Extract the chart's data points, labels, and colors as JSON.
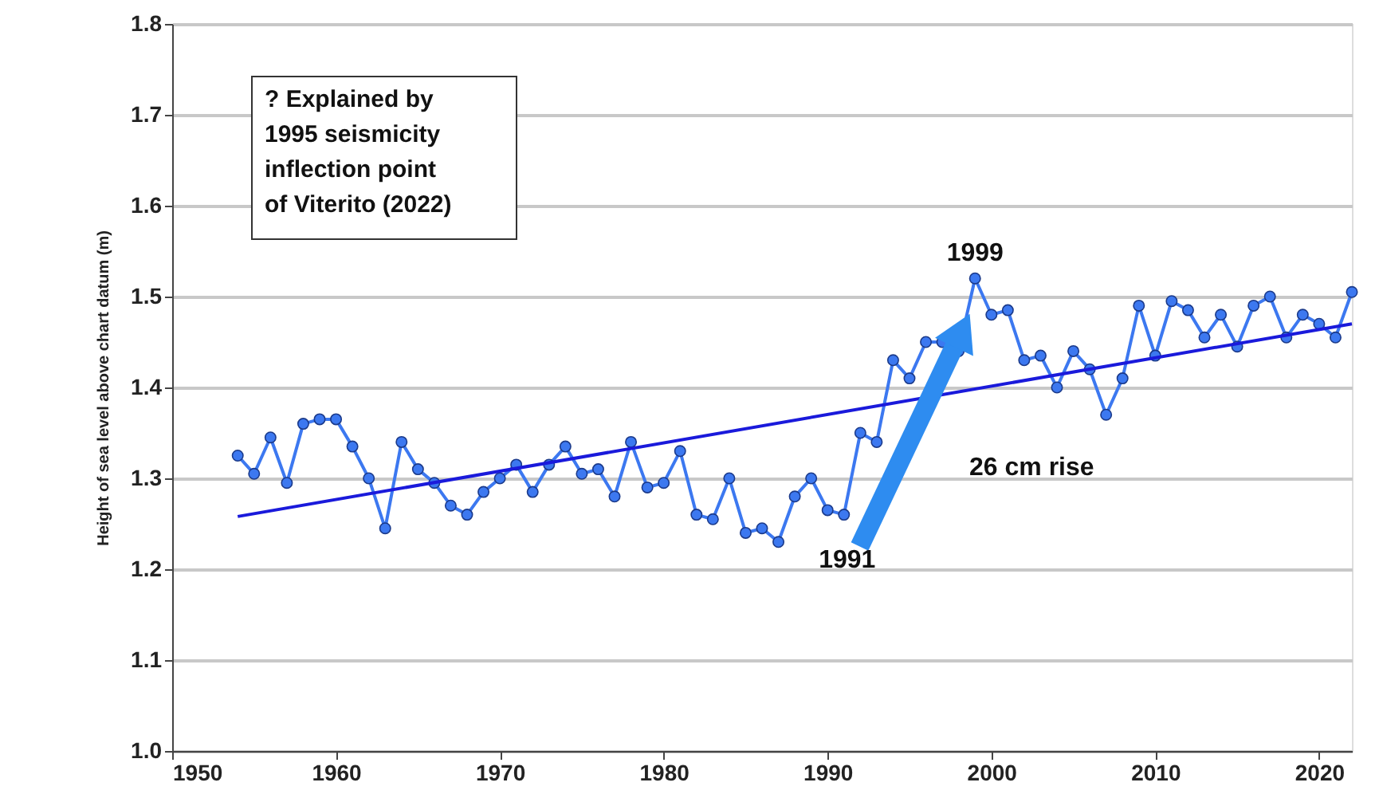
{
  "chart_data": {
    "type": "line",
    "ylabel": "Height of sea level above chart datum (m)",
    "x": [
      1954,
      1955,
      1956,
      1957,
      1958,
      1959,
      1960,
      1961,
      1962,
      1963,
      1964,
      1965,
      1966,
      1967,
      1968,
      1969,
      1970,
      1971,
      1972,
      1973,
      1974,
      1975,
      1976,
      1977,
      1978,
      1979,
      1980,
      1981,
      1982,
      1983,
      1984,
      1985,
      1986,
      1987,
      1988,
      1989,
      1990,
      1991,
      1992,
      1993,
      1994,
      1995,
      1996,
      1997,
      1998,
      1999,
      2000,
      2001,
      2002,
      2003,
      2004,
      2005,
      2006,
      2007,
      2008,
      2009,
      2010,
      2011,
      2012,
      2013,
      2014,
      2015,
      2016,
      2017,
      2018,
      2019,
      2020,
      2021,
      2022
    ],
    "series": [
      {
        "color": "#3c78f0",
        "marker": "circle",
        "values": [
          1.325,
          1.305,
          1.345,
          1.295,
          1.36,
          1.365,
          1.365,
          1.335,
          1.3,
          1.245,
          1.34,
          1.31,
          1.295,
          1.27,
          1.26,
          1.285,
          1.3,
          1.315,
          1.285,
          1.315,
          1.335,
          1.305,
          1.31,
          1.28,
          1.34,
          1.29,
          1.295,
          1.33,
          1.26,
          1.255,
          1.3,
          1.24,
          1.245,
          1.23,
          1.28,
          1.3,
          1.265,
          1.26,
          1.35,
          1.34,
          1.43,
          1.41,
          1.45,
          1.45,
          1.44,
          1.52,
          1.48,
          1.485,
          1.43,
          1.435,
          1.4,
          1.44,
          1.42,
          1.37,
          1.41,
          1.49,
          1.435,
          1.495,
          1.485,
          1.455,
          1.48,
          1.445,
          1.49,
          1.5,
          1.455,
          1.48,
          1.47,
          1.455,
          1.505
        ]
      },
      {
        "type": "line",
        "color": "#1a1adb",
        "marker": "none",
        "x": [
          1954,
          2022
        ],
        "values": [
          1.258,
          1.47
        ]
      }
    ],
    "xlim": [
      1950,
      2022
    ],
    "xticks": [
      1950,
      1960,
      1970,
      1980,
      1990,
      2000,
      2010,
      2020
    ],
    "ylim": [
      1.0,
      1.8
    ],
    "yticks": [
      {
        "value": 1.0,
        "label": "1.0"
      },
      1.1,
      1.2,
      1.3,
      1.4,
      1.5,
      1.6,
      1.7,
      {
        "value": 1.8,
        "label": "1.8"
      }
    ],
    "grid": "y",
    "annotations": [
      "? Explained by\n1995 seismicity\ninflection point\nof Viterito (2022)",
      {
        "text": "1991",
        "x": 1991,
        "y": 1.26
      },
      {
        "text": "1999",
        "x": 1999,
        "y": 1.52
      },
      "26 cm rise"
    ]
  }
}
